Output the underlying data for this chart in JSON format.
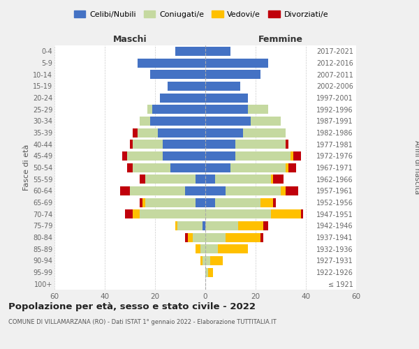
{
  "age_groups": [
    "100+",
    "95-99",
    "90-94",
    "85-89",
    "80-84",
    "75-79",
    "70-74",
    "65-69",
    "60-64",
    "55-59",
    "50-54",
    "45-49",
    "40-44",
    "35-39",
    "30-34",
    "25-29",
    "20-24",
    "15-19",
    "10-14",
    "5-9",
    "0-4"
  ],
  "birth_years": [
    "≤ 1921",
    "1922-1926",
    "1927-1931",
    "1932-1936",
    "1937-1941",
    "1942-1946",
    "1947-1951",
    "1952-1956",
    "1957-1961",
    "1962-1966",
    "1967-1971",
    "1972-1976",
    "1977-1981",
    "1982-1986",
    "1987-1991",
    "1992-1996",
    "1997-2001",
    "2002-2006",
    "2007-2011",
    "2012-2016",
    "2017-2021"
  ],
  "maschi": {
    "celibi": [
      0,
      0,
      0,
      0,
      0,
      1,
      0,
      4,
      8,
      4,
      14,
      17,
      17,
      19,
      22,
      21,
      18,
      15,
      22,
      27,
      12
    ],
    "coniugati": [
      0,
      0,
      1,
      2,
      5,
      10,
      26,
      20,
      22,
      20,
      15,
      14,
      12,
      8,
      4,
      2,
      0,
      0,
      0,
      0,
      0
    ],
    "vedovi": [
      0,
      0,
      1,
      2,
      2,
      1,
      3,
      1,
      0,
      0,
      0,
      0,
      0,
      0,
      0,
      0,
      0,
      0,
      0,
      0,
      0
    ],
    "divorziati": [
      0,
      0,
      0,
      0,
      1,
      0,
      3,
      1,
      4,
      2,
      2,
      2,
      1,
      2,
      0,
      0,
      0,
      0,
      0,
      0,
      0
    ]
  },
  "femmine": {
    "nubili": [
      0,
      0,
      0,
      0,
      0,
      0,
      0,
      4,
      8,
      4,
      10,
      12,
      12,
      15,
      18,
      17,
      17,
      14,
      22,
      25,
      10
    ],
    "coniugate": [
      0,
      1,
      2,
      5,
      8,
      13,
      26,
      18,
      22,
      22,
      22,
      22,
      20,
      17,
      12,
      8,
      0,
      0,
      0,
      0,
      0
    ],
    "vedove": [
      0,
      2,
      5,
      12,
      14,
      10,
      12,
      5,
      2,
      1,
      1,
      1,
      0,
      0,
      0,
      0,
      0,
      0,
      0,
      0,
      0
    ],
    "divorziate": [
      0,
      0,
      0,
      0,
      1,
      2,
      1,
      1,
      5,
      4,
      3,
      3,
      1,
      0,
      0,
      0,
      0,
      0,
      0,
      0,
      0
    ]
  },
  "colors": {
    "celibi": "#4472c4",
    "coniugati": "#c5d9a0",
    "vedovi": "#ffc000",
    "divorziati": "#c0000b"
  },
  "legend_labels": [
    "Celibi/Nubili",
    "Coniugati/e",
    "Vedovi/e",
    "Divorziati/e"
  ],
  "title": "Popolazione per età, sesso e stato civile - 2022",
  "subtitle": "COMUNE DI VILLAMARZANA (RO) - Dati ISTAT 1° gennaio 2022 - Elaborazione TUTTITALIA.IT",
  "ylabel": "Fasce di età",
  "ylabel_right": "Anni di nascita",
  "xlabel_left": "Maschi",
  "xlabel_right": "Femmine",
  "xlim": 60,
  "bg_color": "#f0f0f0",
  "plot_bg": "#ffffff"
}
